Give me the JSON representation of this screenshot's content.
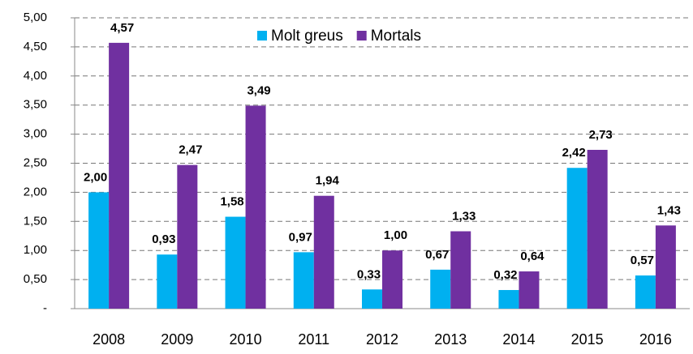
{
  "chart_data": {
    "type": "bar",
    "categories": [
      "2008",
      "2009",
      "2010",
      "2011",
      "2012",
      "2013",
      "2014",
      "2015",
      "2016"
    ],
    "series": [
      {
        "name": "Molt greus",
        "color": "#00b0f0",
        "values": [
          2.0,
          0.93,
          1.58,
          0.97,
          0.33,
          0.67,
          0.32,
          2.42,
          0.57
        ],
        "value_labels": [
          "2,00",
          "0,93",
          "1,58",
          "0,97",
          "0,33",
          "0,67",
          "0,32",
          "2,42",
          "0,57"
        ]
      },
      {
        "name": "Mortals",
        "color": "#7030a0",
        "values": [
          4.57,
          2.47,
          3.49,
          1.94,
          1.0,
          1.33,
          0.64,
          2.73,
          1.43
        ],
        "value_labels": [
          "4,57",
          "2,47",
          "3,49",
          "1,94",
          "1,00",
          "1,33",
          "0,64",
          "2,73",
          "1,43"
        ]
      }
    ],
    "ylim": [
      0,
      5
    ],
    "yticks": [
      {
        "value": 0,
        "label": "-"
      },
      {
        "value": 0.5,
        "label": "0,50"
      },
      {
        "value": 1,
        "label": "1,00"
      },
      {
        "value": 1.5,
        "label": "1,50"
      },
      {
        "value": 2,
        "label": "2,00"
      },
      {
        "value": 2.5,
        "label": "2,50"
      },
      {
        "value": 3,
        "label": "3,00"
      },
      {
        "value": 3.5,
        "label": "3,50"
      },
      {
        "value": 4,
        "label": "4,00"
      },
      {
        "value": 4.5,
        "label": "4,50"
      },
      {
        "value": 5,
        "label": "5,00"
      }
    ],
    "grid": true,
    "legend": "top"
  }
}
